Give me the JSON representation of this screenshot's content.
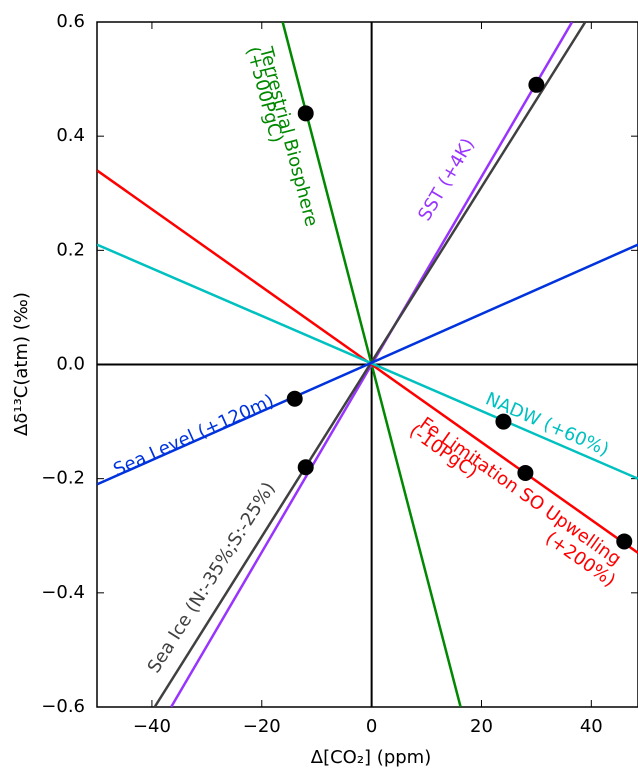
{
  "chart_data": {
    "type": "line",
    "xlabel": "Δ[CO₂] (ppm)",
    "ylabel": "Δδ¹³C(atm) (‰)",
    "xlim": [
      -50,
      48.5
    ],
    "ylim": [
      -0.6,
      0.6
    ],
    "xticks": [
      {
        "value": -40,
        "label": "−40"
      },
      {
        "value": -20,
        "label": "−20"
      },
      0,
      20,
      40
    ],
    "yticks": [
      {
        "value": -0.6,
        "label": "−0.6"
      },
      {
        "value": -0.4,
        "label": "−0.4"
      },
      {
        "value": -0.2,
        "label": "−0.2"
      },
      {
        "value": 0,
        "label": "0.0"
      },
      0.2,
      0.4,
      0.6
    ],
    "series": [
      {
        "color": "#008800",
        "x": [
          -16.2,
          16.2
        ],
        "values": [
          0.6,
          -0.6
        ]
      },
      {
        "color": "#9933ff",
        "x": [
          -36.5,
          36.5
        ],
        "values": [
          -0.6,
          0.6
        ]
      },
      {
        "color": "#404040",
        "x": [
          -39.5,
          38.9
        ],
        "values": [
          -0.6,
          0.6
        ]
      },
      {
        "color": "#ff0000",
        "x": [
          -50,
          48.5
        ],
        "values": [
          0.34,
          -0.33
        ]
      },
      {
        "color": "#00c0c0",
        "x": [
          -50,
          48.5
        ],
        "values": [
          0.21,
          -0.2
        ]
      },
      {
        "color": "#0033dd",
        "x": [
          -50,
          48.5
        ],
        "values": [
          -0.21,
          0.21
        ]
      }
    ],
    "points": {
      "color": "#000000",
      "x": [
        -12,
        30,
        -14,
        24,
        -12,
        28,
        46
      ],
      "values": [
        0.44,
        0.49,
        -0.06,
        -0.1,
        -0.18,
        -0.19,
        -0.31
      ]
    },
    "annotations": [
      "Terrestrial Biosphere",
      "(+500PgC)",
      "SST (+4K)",
      "Sea Ice (N:-35%;S:-25%)",
      "Sea Level (+120m)",
      "NADW (+60%)",
      "Fe Limitation SO Upwelling",
      "(-10PgC)",
      "(+200%)"
    ]
  }
}
